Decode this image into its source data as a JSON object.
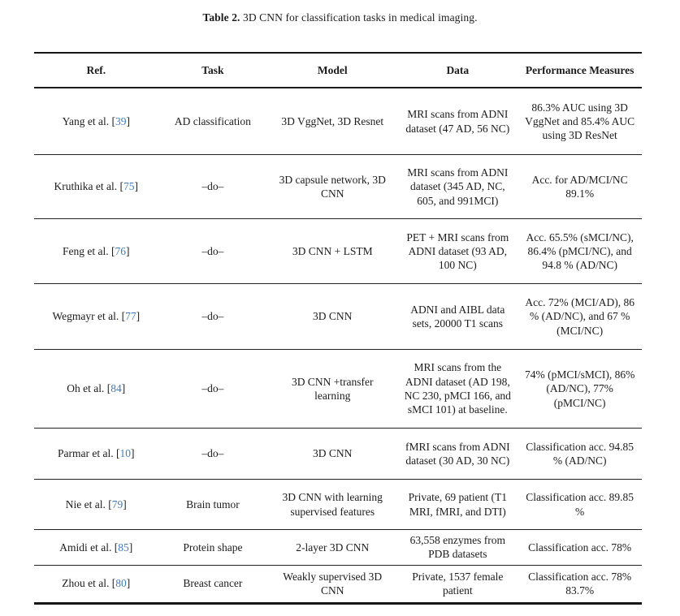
{
  "caption": {
    "label": "Table 2.",
    "text": " 3D CNN for classification tasks in medical imaging."
  },
  "colors": {
    "citation_blue": "#3b7cc4",
    "text": "#1c1c1c",
    "rule": "#161616"
  },
  "table": {
    "headers": [
      "Ref.",
      "Task",
      "Model",
      "Data",
      "Performance Measures"
    ],
    "citation_brackets": [
      "[",
      "]"
    ],
    "rows": [
      {
        "ref_name": "Yang et al.",
        "ref_num": "39",
        "task": "AD classification",
        "model": "3D VggNet, 3D Resnet",
        "data": "MRI scans from ADNI dataset (47 AD, 56 NC)",
        "performance": "86.3% AUC using 3D VggNet and 85.4% AUC using 3D ResNet"
      },
      {
        "ref_name": "Kruthika et al.",
        "ref_num": "75",
        "task": "–do–",
        "model": "3D capsule network, 3D CNN",
        "data": "MRI scans from ADNI dataset (345 AD, NC, 605, and 991MCI)",
        "performance": "Acc. for AD/MCI/NC 89.1%"
      },
      {
        "ref_name": "Feng et al.",
        "ref_num": "76",
        "task": "–do–",
        "model": "3D CNN + LSTM",
        "data": "PET + MRI scans from ADNI dataset (93 AD, 100 NC)",
        "performance": "Acc. 65.5% (sMCI/NC), 86.4% (pMCI/NC), and 94.8 % (AD/NC)"
      },
      {
        "ref_name": "Wegmayr et al.",
        "ref_num": "77",
        "task": "–do–",
        "model": "3D CNN",
        "data": "ADNI and AIBL data sets, 20000 T1 scans",
        "performance": "Acc. 72% (MCI/AD), 86 % (AD/NC), and 67 % (MCI/NC)"
      },
      {
        "ref_name": "Oh et al.",
        "ref_num": "84",
        "task": "–do–",
        "model": "3D CNN +transfer learning",
        "data": "MRI scans from the ADNI dataset (AD 198, NC 230, pMCI 166, and sMCI 101) at baseline.",
        "performance": "74% (pMCI/sMCI), 86% (AD/NC), 77% (pMCI/NC)"
      },
      {
        "ref_name": "Parmar et al.",
        "ref_num": "10",
        "task": "–do–",
        "model": "3D CNN",
        "data": "fMRI scans from ADNI dataset (30 AD, 30 NC)",
        "performance": "Classification acc. 94.85 % (AD/NC)"
      },
      {
        "ref_name": "Nie et al.",
        "ref_num": "79",
        "task": "Brain tumor",
        "model": "3D CNN with learning supervised features",
        "data": "Private, 69 patient (T1 MRI, fMRI, and DTI)",
        "performance": "Classification acc. 89.85 %"
      },
      {
        "ref_name": "Amidi et al.",
        "ref_num": "85",
        "task": "Protein shape",
        "model": "2-layer 3D CNN",
        "data": "63,558 enzymes from PDB datasets",
        "performance": "Classification acc. 78%"
      },
      {
        "ref_name": "Zhou et al.",
        "ref_num": "80",
        "task": "Breast cancer",
        "model": "Weakly supervised 3D CNN",
        "data": "Private, 1537 female patient",
        "performance": "Classification acc. 78% 83.7%"
      }
    ]
  }
}
